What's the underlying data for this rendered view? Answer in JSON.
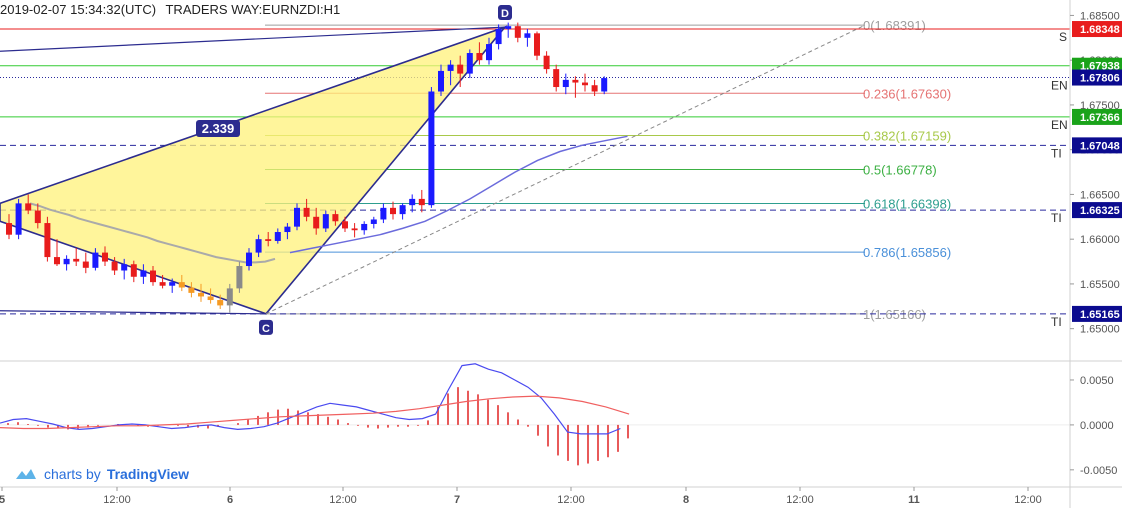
{
  "header": {
    "datetime": "2019-02-07 15:34:32(UTC)",
    "broker_symbol": "TRADERS WAY:EURNZDI:H1"
  },
  "watermark": {
    "prefix": "charts by",
    "brand": "TradingView"
  },
  "colors": {
    "bull": "#1a1aff",
    "bear": "#e81c1c",
    "pattern_fill": "#fff27a",
    "pattern_line": "#2c2c8f",
    "ma": "#aaaaaa",
    "trend": "#6b6bdc",
    "tp_badge": "#0b0b8f",
    "green_badge": "#1aa31a",
    "red_badge": "#e81c1c"
  },
  "chart_data": [
    {
      "type": "candlestick",
      "title": "EURNZDI H1",
      "ylim": [
        1.6465,
        1.6865
      ],
      "y_ticks": [
        "1.68500",
        "1.68000",
        "1.67500",
        "1.67000",
        "1.66500",
        "1.66000",
        "1.65500",
        "1.65000"
      ],
      "x_ticks": [
        "5",
        "12:00",
        "6",
        "12:00",
        "7",
        "12:00",
        "8",
        "12:00",
        "11",
        "12:00"
      ],
      "pattern_points": {
        "C": 1.65166,
        "D": 1.68391,
        "ratio_label": "2.339"
      },
      "fibonacci": [
        {
          "label": "0(1.68391)",
          "level": 1.68391,
          "color": "#9e9e9e"
        },
        {
          "label": "0.236(1.67630)",
          "level": 1.6763,
          "color": "#e57373"
        },
        {
          "label": "0.382(1.67159)",
          "level": 1.67159,
          "color": "#a8c94a"
        },
        {
          "label": "0.5(1.66778)",
          "level": 1.66778,
          "color": "#3cb043"
        },
        {
          "label": "0.618(1.66398)",
          "level": 1.66398,
          "color": "#2e9e8f"
        },
        {
          "label": "0.786(1.65856)",
          "level": 1.65856,
          "color": "#4a90d9"
        },
        {
          "label": "1(1.65166)",
          "level": 1.65166,
          "color": "#9e9e9e"
        }
      ],
      "price_badges": [
        {
          "value": "1.68348",
          "side_label": "S",
          "style": "red"
        },
        {
          "value": "1.67938",
          "side_label": "",
          "style": "green"
        },
        {
          "value": "1.67806",
          "side_label": "EN",
          "style": "navy"
        },
        {
          "value": "1.67366",
          "side_label": "EN",
          "style": "green"
        },
        {
          "value": "1.67048",
          "side_label": "TI",
          "style": "navy"
        },
        {
          "value": "1.66325",
          "side_label": "TI",
          "style": "navy"
        },
        {
          "value": "1.65165",
          "side_label": "TI",
          "style": "navy"
        }
      ],
      "candles": [
        [
          1.6618,
          1.6628,
          1.66,
          1.6605
        ],
        [
          1.6605,
          1.6645,
          1.66,
          1.664
        ],
        [
          1.664,
          1.665,
          1.6628,
          1.6632
        ],
        [
          1.6632,
          1.664,
          1.6612,
          1.6618
        ],
        [
          1.6618,
          1.6625,
          1.6575,
          1.658
        ],
        [
          1.658,
          1.66,
          1.657,
          1.6572
        ],
        [
          1.6572,
          1.6582,
          1.6565,
          1.6578
        ],
        [
          1.6578,
          1.659,
          1.657,
          1.6575
        ],
        [
          1.6575,
          1.6585,
          1.6562,
          1.6568
        ],
        [
          1.6568,
          1.659,
          1.6565,
          1.6585
        ],
        [
          1.6585,
          1.6592,
          1.657,
          1.6575
        ],
        [
          1.6575,
          1.658,
          1.656,
          1.6565
        ],
        [
          1.6565,
          1.6578,
          1.6555,
          1.6572
        ],
        [
          1.6572,
          1.6576,
          1.6552,
          1.6558
        ],
        [
          1.6558,
          1.6572,
          1.655,
          1.6565
        ],
        [
          1.6565,
          1.657,
          1.6548,
          1.6552
        ],
        [
          1.6552,
          1.656,
          1.6545,
          1.6548
        ],
        [
          1.6548,
          1.6556,
          1.654,
          1.6552
        ],
        [
          1.6552,
          1.656,
          1.6542,
          1.6546
        ],
        [
          1.6546,
          1.6552,
          1.6535,
          1.654
        ],
        [
          1.654,
          1.655,
          1.653,
          1.6536
        ],
        [
          1.6536,
          1.6545,
          1.6528,
          1.6532
        ],
        [
          1.6532,
          1.6538,
          1.6522,
          1.6526
        ],
        [
          1.6526,
          1.655,
          1.6518,
          1.6545
        ],
        [
          1.6545,
          1.6575,
          1.654,
          1.657
        ],
        [
          1.657,
          1.659,
          1.6565,
          1.6585
        ],
        [
          1.6585,
          1.6605,
          1.658,
          1.66
        ],
        [
          1.66,
          1.6608,
          1.6592,
          1.6598
        ],
        [
          1.6598,
          1.6612,
          1.6595,
          1.6608
        ],
        [
          1.6608,
          1.6618,
          1.66,
          1.6614
        ],
        [
          1.6614,
          1.664,
          1.661,
          1.6635
        ],
        [
          1.6635,
          1.6645,
          1.662,
          1.6625
        ],
        [
          1.6625,
          1.6635,
          1.6605,
          1.6612
        ],
        [
          1.6612,
          1.6632,
          1.6608,
          1.6628
        ],
        [
          1.6628,
          1.6632,
          1.6615,
          1.662
        ],
        [
          1.662,
          1.6625,
          1.6608,
          1.6612
        ],
        [
          1.6612,
          1.6618,
          1.6602,
          1.661
        ],
        [
          1.661,
          1.662,
          1.6605,
          1.6617
        ],
        [
          1.6617,
          1.6625,
          1.6612,
          1.6622
        ],
        [
          1.6622,
          1.664,
          1.6618,
          1.6635
        ],
        [
          1.6635,
          1.6642,
          1.6622,
          1.6628
        ],
        [
          1.6628,
          1.664,
          1.6622,
          1.6638
        ],
        [
          1.6638,
          1.665,
          1.663,
          1.6645
        ],
        [
          1.6645,
          1.6655,
          1.663,
          1.6638
        ],
        [
          1.6638,
          1.677,
          1.6635,
          1.6765
        ],
        [
          1.6765,
          1.6795,
          1.676,
          1.6788
        ],
        [
          1.6788,
          1.68,
          1.6772,
          1.6795
        ],
        [
          1.6795,
          1.6805,
          1.677,
          1.6785
        ],
        [
          1.6785,
          1.6812,
          1.678,
          1.6808
        ],
        [
          1.6808,
          1.682,
          1.6795,
          1.68
        ],
        [
          1.68,
          1.6825,
          1.6795,
          1.6818
        ],
        [
          1.6818,
          1.684,
          1.6812,
          1.6835
        ],
        [
          1.6835,
          1.6842,
          1.6825,
          1.6838
        ],
        [
          1.6838,
          1.6842,
          1.682,
          1.6825
        ],
        [
          1.6825,
          1.6835,
          1.6815,
          1.683
        ],
        [
          1.683,
          1.6832,
          1.68,
          1.6805
        ],
        [
          1.6805,
          1.681,
          1.6785,
          1.679
        ],
        [
          1.679,
          1.6795,
          1.6765,
          1.677
        ],
        [
          1.677,
          1.6785,
          1.6762,
          1.6778
        ],
        [
          1.6778,
          1.6782,
          1.6758,
          1.6775
        ],
        [
          1.6775,
          1.6785,
          1.6765,
          1.6772
        ],
        [
          1.6772,
          1.6778,
          1.676,
          1.6765
        ],
        [
          1.6765,
          1.6782,
          1.6762,
          1.678
        ]
      ],
      "moving_average": [
        1.664,
        1.6637,
        1.6633,
        1.663,
        1.6627,
        1.6623,
        1.662,
        1.6617,
        1.6614,
        1.6611,
        1.6608,
        1.6605,
        1.6602,
        1.6598,
        1.6595,
        1.6592,
        1.6589,
        1.6586,
        1.6583,
        1.658,
        1.6578,
        1.6576,
        1.6574,
        1.6574,
        1.6575,
        1.6578
      ],
      "trend_line": [
        1.6585,
        1.659,
        1.6595,
        1.66,
        1.6605,
        1.6612,
        1.662,
        1.6632,
        1.6645,
        1.666,
        1.6675,
        1.6688,
        1.6698,
        1.6705,
        1.671,
        1.6715
      ]
    },
    {
      "type": "macd",
      "ylim": [
        -0.0068,
        0.007
      ],
      "y_ticks": [
        "0.0050",
        "0.0000",
        "-0.0050"
      ],
      "histogram": [
        0.0002,
        0.0003,
        0.0001,
        -0.0001,
        -0.0003,
        -0.0004,
        -0.0005,
        -0.0004,
        -0.0003,
        -0.0001,
        0.0,
        0.0001,
        0.0,
        -0.0001,
        -0.0002,
        -0.0001,
        0.0,
        -0.0001,
        -0.0002,
        -0.0003,
        -0.0004,
        -0.0002,
        0.0,
        0.0002,
        0.0006,
        0.001,
        0.0014,
        0.0017,
        0.0018,
        0.0016,
        0.0014,
        0.0012,
        0.0009,
        0.0006,
        0.0002,
        -0.0001,
        -0.0003,
        -0.0004,
        -0.0003,
        -0.0002,
        -0.0002,
        -0.0001,
        0.0005,
        0.002,
        0.0035,
        0.0042,
        0.0038,
        0.0034,
        0.0028,
        0.0022,
        0.0014,
        0.0006,
        -0.0002,
        -0.0012,
        -0.0024,
        -0.0034,
        -0.004,
        -0.0045,
        -0.0043,
        -0.004,
        -0.0036,
        -0.003,
        -0.0015
      ],
      "macd_line": [
        0.0002,
        0.0006,
        0.0007,
        0.0004,
        0.0001,
        -0.0003,
        -0.0005,
        -0.0004,
        -0.0002,
        0.0,
        0.0001,
        0.0,
        -0.0002,
        -0.0004,
        -0.0003,
        -0.0001,
        0.0,
        -0.0003,
        -0.0005,
        -0.0004,
        -0.0002,
        0.0002,
        0.0008,
        0.0014,
        0.002,
        0.0024,
        0.0022,
        0.002,
        0.0016,
        0.0012,
        0.0008,
        0.0006,
        0.0007,
        0.0012,
        0.004,
        0.0066,
        0.0068,
        0.0062,
        0.0058,
        0.005,
        0.0042,
        0.003,
        0.0012,
        -0.0008,
        -0.001,
        -0.001,
        -0.001,
        -0.0004
      ],
      "signal_line": [
        -0.0003,
        -0.0004,
        -0.0004,
        -0.0003,
        -0.0002,
        -0.0001,
        -0.0001,
        0.0,
        0.0001,
        0.0003,
        0.0005,
        0.0007,
        0.0009,
        0.001,
        0.0011,
        0.0012,
        0.0013,
        0.0015,
        0.0018,
        0.0022,
        0.0026,
        0.0029,
        0.0031,
        0.0032,
        0.003,
        0.0026,
        0.002,
        0.0012
      ]
    }
  ]
}
